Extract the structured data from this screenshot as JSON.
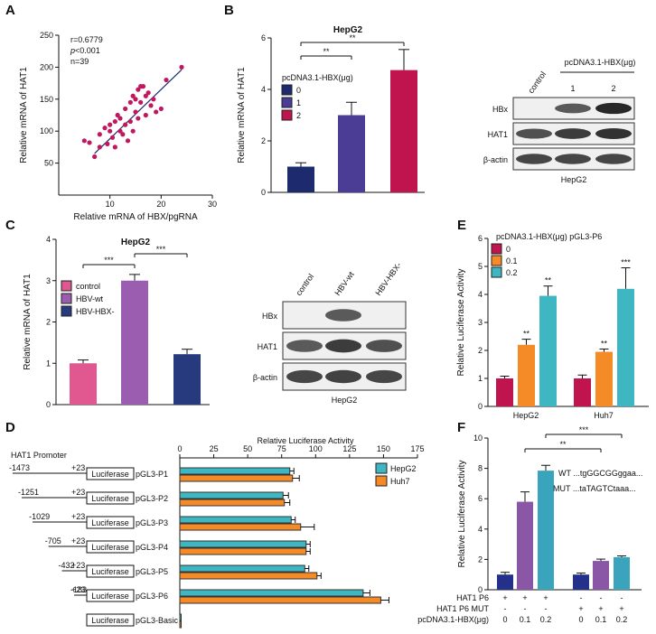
{
  "panels": {
    "a": "A",
    "b": "B",
    "c": "C",
    "d": "D",
    "e": "E",
    "f": "F"
  },
  "colors": {
    "navy": "#1d2a6e",
    "purple": "#4b3c96",
    "crimson": "#c0144f",
    "pink": "#e0588f",
    "violet": "#9a5db0",
    "dkblue": "#273a7d",
    "orange": "#f58b26",
    "teal": "#3fb7c3",
    "blue_f": "#24318a",
    "purple_f": "#8a56a6",
    "teal_f": "#3aa4bc",
    "scatter": "#c0185e"
  },
  "chart_data": [
    {
      "id": "A",
      "type": "scatter",
      "xlabel": "Relative mRNA of HBX/pgRNA",
      "ylabel": "Relative mRNA of HAT1",
      "xlim": [
        0,
        30
      ],
      "ylim": [
        0,
        250
      ],
      "xticks": [
        "10",
        "20",
        "30"
      ],
      "yticks": [
        "50",
        "100",
        "150",
        "200",
        "250"
      ],
      "stats": {
        "r": "r=0.6779",
        "p": "p",
        "pval": "<0.001",
        "n": "n=39"
      },
      "points": [
        [
          5,
          85
        ],
        [
          6,
          82
        ],
        [
          7,
          60
        ],
        [
          8,
          75
        ],
        [
          8,
          95
        ],
        [
          9,
          105
        ],
        [
          9.5,
          80
        ],
        [
          10,
          100
        ],
        [
          10,
          110
        ],
        [
          10.5,
          90
        ],
        [
          11,
          115
        ],
        [
          11,
          75
        ],
        [
          11.5,
          125
        ],
        [
          12,
          100
        ],
        [
          12,
          120
        ],
        [
          12.5,
          95
        ],
        [
          13,
          135
        ],
        [
          13,
          110
        ],
        [
          13.5,
          85
        ],
        [
          14,
          145
        ],
        [
          14,
          115
        ],
        [
          14.5,
          155
        ],
        [
          14.5,
          100
        ],
        [
          15,
          150
        ],
        [
          15,
          130
        ],
        [
          15.5,
          165
        ],
        [
          15.5,
          120
        ],
        [
          16,
          170
        ],
        [
          16,
          145
        ],
        [
          16.5,
          170
        ],
        [
          17,
          155
        ],
        [
          17,
          125
        ],
        [
          17.5,
          160
        ],
        [
          18,
          140
        ],
        [
          18.5,
          150
        ],
        [
          19,
          130
        ],
        [
          20,
          135
        ],
        [
          21,
          180
        ],
        [
          24,
          200
        ]
      ],
      "fit": [
        [
          7,
          65
        ],
        [
          24,
          196
        ]
      ]
    },
    {
      "id": "B",
      "type": "bar",
      "title": "HepG2",
      "ylabel": "Relative mRNA of HAT1",
      "ylim": [
        0,
        6
      ],
      "yticks": [
        "0",
        "2",
        "4",
        "6"
      ],
      "legend_title": "pcDNA3.1-HBX(μg)",
      "legend": [
        "0",
        "1",
        "2"
      ],
      "values": [
        1.0,
        3.0,
        4.75
      ],
      "errors": [
        0.15,
        0.5,
        0.8
      ],
      "sig": [
        "**",
        "**"
      ]
    },
    {
      "id": "C",
      "type": "bar",
      "title": "HepG2",
      "ylabel": "Relative mRNA of HAT1",
      "ylim": [
        0,
        4
      ],
      "yticks": [
        "0",
        "1",
        "2",
        "3",
        "4"
      ],
      "legend": [
        "control",
        "HBV-wt",
        "HBV-HBX-"
      ],
      "values": [
        1.0,
        3.0,
        1.22
      ],
      "errors": [
        0.08,
        0.15,
        0.12
      ],
      "sig": [
        "***",
        "***"
      ]
    },
    {
      "id": "E",
      "type": "bar",
      "ylabel": "Relative Luciferase Activity",
      "ylim": [
        0,
        6
      ],
      "yticks": [
        "0",
        "1",
        "2",
        "3",
        "4",
        "5",
        "6"
      ],
      "legend_title": "pcDNA3.1-HBX(μg)  pGL3-P6",
      "legend": [
        "0",
        "0.1",
        "0.2"
      ],
      "categories": [
        "HepG2",
        "Huh7"
      ],
      "series": [
        {
          "name": "0",
          "values": [
            1.0,
            1.0
          ],
          "errors": [
            0.08,
            0.12
          ]
        },
        {
          "name": "0.1",
          "values": [
            2.2,
            1.95
          ],
          "errors": [
            0.2,
            0.1
          ]
        },
        {
          "name": "0.2",
          "values": [
            3.95,
            4.2
          ],
          "errors": [
            0.35,
            0.75
          ]
        }
      ],
      "sig": [
        [
          "",
          "**",
          "**"
        ],
        [
          "",
          "**",
          "***"
        ]
      ]
    },
    {
      "id": "D",
      "type": "bar",
      "xlabel": "Relative Luciferase Activity",
      "xlim": [
        0,
        175
      ],
      "xticks": [
        "0",
        "25",
        "50",
        "75",
        "100",
        "125",
        "150",
        "175"
      ],
      "header": "HAT1  Promoter",
      "legend": [
        "HepG2",
        "Huh7"
      ],
      "constructs": [
        {
          "start": "-1473",
          "end": "+23",
          "name": "pGL3-P1",
          "box": "Luciferase"
        },
        {
          "start": "-1251",
          "end": "+23",
          "name": "pGL3-P2",
          "box": "Luciferase"
        },
        {
          "start": "-1029",
          "end": "+23",
          "name": "pGL3-P3",
          "box": "Luciferase"
        },
        {
          "start": "-705",
          "end": "+23",
          "name": "pGL3-P4",
          "box": "Luciferase"
        },
        {
          "start": "-432",
          "end": "+23",
          "name": "pGL3-P5",
          "box": "Luciferase"
        },
        {
          "start": "-183",
          "end": "+23",
          "name": "pGL3-P6",
          "box": "Luciferase"
        },
        {
          "start": "",
          "end": "",
          "name": "pGL3-Basic",
          "box": "Luciferase"
        }
      ],
      "series": [
        {
          "name": "HepG2",
          "values": [
            81,
            76,
            82,
            93,
            92,
            135,
            1
          ],
          "errors": [
            3,
            4,
            3,
            3,
            3,
            5,
            0
          ]
        },
        {
          "name": "Huh7",
          "values": [
            83,
            77,
            89,
            93,
            101,
            148,
            1
          ],
          "errors": [
            5,
            4,
            10,
            3,
            3,
            6,
            0
          ]
        }
      ]
    },
    {
      "id": "F",
      "type": "bar",
      "ylabel": "Relative Luciferase Activity",
      "ylim": [
        0,
        10
      ],
      "yticks": [
        "0",
        "2",
        "4",
        "6",
        "8",
        "10"
      ],
      "values": [
        1.0,
        5.8,
        7.85,
        1.0,
        1.9,
        2.15
      ],
      "errors": [
        0.15,
        0.65,
        0.35,
        0.1,
        0.12,
        0.08
      ],
      "wt": "WT ...tgGGCGGggaa...",
      "mut": "MUT ...taTAGTCtaaa...",
      "sig": [
        "**",
        "***"
      ],
      "rows": [
        {
          "label": "HAT1 P6",
          "marks": [
            "+",
            "+",
            "+",
            "-",
            "-",
            "-"
          ]
        },
        {
          "label": "HAT1 P6 MUT",
          "marks": [
            "-",
            "-",
            "-",
            "+",
            "+",
            "+"
          ]
        },
        {
          "label": "pcDNA3.1-HBX(μg)",
          "marks": [
            "0",
            "0.1",
            "0.2",
            "0",
            "0.1",
            "0.2"
          ]
        }
      ]
    }
  ],
  "blots": {
    "b": {
      "lanes": [
        "control"
      ],
      "group": "pcDNA3.1-HBX(μg)",
      "group_lanes": [
        "1",
        "2"
      ],
      "rows": [
        "HBx",
        "HAT1",
        "β-actin"
      ],
      "cell": "HepG2"
    },
    "c": {
      "lanes": [
        "control",
        "HBV-wt",
        "HBV-HBX-"
      ],
      "rows": [
        "HBx",
        "HAT1",
        "β-actin"
      ],
      "cell": "HepG2"
    }
  }
}
